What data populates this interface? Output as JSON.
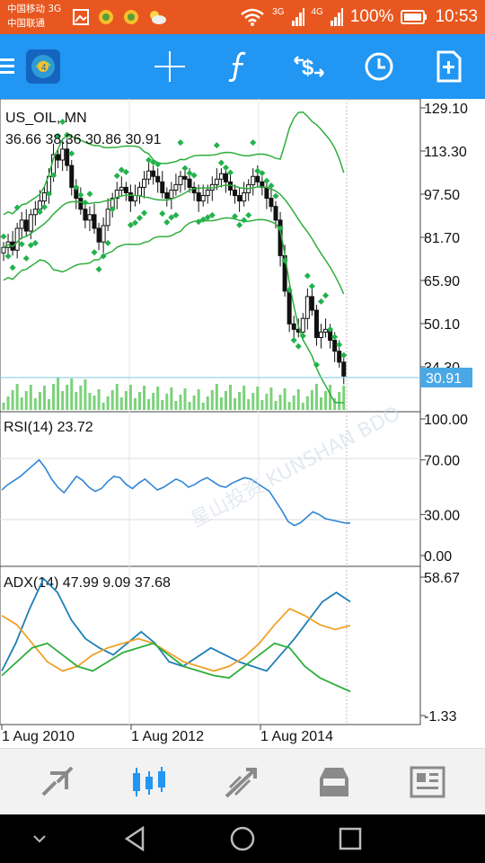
{
  "status_bar": {
    "carrier_line1": "中国移动 3G",
    "carrier_line2": "中国联通",
    "network_1": "3G",
    "network_2": "4G",
    "battery": "100%",
    "time": "10:53"
  },
  "toolbar": {
    "icons": [
      "menu-icon",
      "app-logo-icon",
      "crosshair-icon",
      "function-icon",
      "symbol-change-icon",
      "timeframe-clock-icon",
      "new-order-icon"
    ]
  },
  "chart": {
    "symbol_title": "US_OIL, MN",
    "ohlc_readout": "36.66 38.36 30.86 30.91",
    "price_axis_labels": [
      "129.10",
      "113.30",
      "97.50",
      "81.70",
      "65.90",
      "50.10",
      "34.30"
    ],
    "current_price": "30.91",
    "rsi_label": "RSI(14) 23.72",
    "rsi_axis_labels": [
      "100.00",
      "70.00",
      "30.00",
      "0.00"
    ],
    "adx_label": "ADX(14) 47.99 9.09 37.68",
    "adx_axis_labels": [
      "58.67",
      "-1.33"
    ],
    "date_labels": [
      "1 Aug 2010",
      "1 Aug 2012",
      "1 Aug 2014"
    ],
    "watermark": "星山投资 KUNSHAN BDO",
    "colors": {
      "bollinger": "#2fae3c",
      "sar": "#22b24c",
      "volume": "#7bd27a",
      "rsi": "#2f86d6",
      "adx_main": "#1f7fb6",
      "adx_plus": "#f0a22a",
      "adx_minus": "#2fae3c",
      "price_line": "#7ec8e3",
      "price_tag": "#4aa8e6"
    }
  },
  "chart_data": {
    "type": "candlestick",
    "timeframe": "MN",
    "x_range": [
      "2009-10",
      "2015-12"
    ],
    "price_ylim": [
      18.5,
      129.1
    ],
    "close_series": [
      78,
      80,
      77,
      85,
      88,
      84,
      90,
      92,
      95,
      98,
      104,
      112,
      110,
      114,
      108,
      100,
      96,
      92,
      88,
      90,
      85,
      80,
      86,
      92,
      96,
      99,
      100,
      98,
      95,
      97,
      100,
      103,
      106,
      104,
      102,
      98,
      96,
      99,
      101,
      104,
      103,
      100,
      98,
      95,
      97,
      99,
      101,
      103,
      105,
      102,
      99,
      97,
      95,
      98,
      101,
      104,
      102,
      100,
      96,
      93,
      88,
      75,
      62,
      50,
      48,
      47,
      52,
      60,
      55,
      45,
      47,
      48,
      44,
      40,
      36,
      30.91
    ],
    "rsi": [
      48,
      52,
      55,
      58,
      62,
      66,
      70,
      64,
      56,
      50,
      46,
      52,
      58,
      55,
      50,
      47,
      49,
      54,
      58,
      57,
      52,
      49,
      53,
      56,
      52,
      48,
      50,
      53,
      56,
      54,
      50,
      52,
      55,
      57,
      54,
      51,
      50,
      53,
      55,
      57,
      56,
      53,
      50,
      47,
      40,
      33,
      25,
      22,
      24,
      28,
      32,
      30,
      27,
      26,
      25,
      24,
      23.72
    ],
    "adx_main": [
      18,
      30,
      45,
      58,
      52,
      40,
      32,
      28,
      25,
      30,
      35,
      30,
      22,
      20,
      24,
      28,
      25,
      22,
      20,
      18,
      25,
      32,
      40,
      48,
      52,
      47.99
    ],
    "adx_plus": [
      42,
      38,
      30,
      22,
      18,
      20,
      25,
      28,
      30,
      32,
      30,
      26,
      22,
      20,
      18,
      20,
      24,
      30,
      38,
      45,
      42,
      38,
      36,
      37.68
    ],
    "adx_minus": [
      16,
      22,
      28,
      30,
      25,
      20,
      18,
      22,
      26,
      28,
      30,
      25,
      20,
      18,
      16,
      15,
      20,
      25,
      30,
      28,
      20,
      15,
      12,
      9.09
    ]
  }
}
